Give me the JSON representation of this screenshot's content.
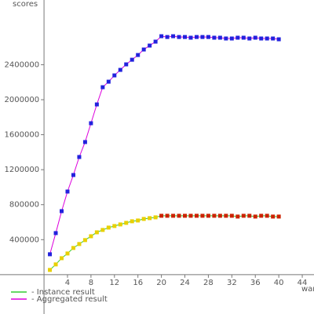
{
  "chart_data": {
    "type": "line",
    "y_label": "scores",
    "x_label": "war",
    "xlim": [
      -7.5,
      46
    ],
    "ylim": [
      -450000,
      3140000
    ],
    "xticks": [
      4,
      8,
      12,
      16,
      20,
      24,
      28,
      32,
      36,
      40,
      44
    ],
    "yticks": [
      400000,
      800000,
      1200000,
      1600000,
      2000000,
      2400000
    ],
    "x": [
      1,
      2,
      3,
      4,
      5,
      6,
      7,
      8,
      9,
      10,
      11,
      12,
      13,
      14,
      15,
      16,
      17,
      18,
      19,
      20,
      21,
      22,
      23,
      24,
      25,
      26,
      27,
      28,
      29,
      30,
      31,
      32,
      33,
      34,
      35,
      36,
      37,
      38,
      39,
      40
    ],
    "series": [
      {
        "name": "- Instance result",
        "color": "#33cc33",
        "marker_colors": [
          "#e8d000",
          "#e8d000",
          "#e8d000",
          "#e8d000",
          "#e8d000",
          "#e8d000",
          "#e8d000",
          "#e8d000",
          "#e8d000",
          "#e8d000",
          "#e8d000",
          "#e8d000",
          "#e8d000",
          "#e8d000",
          "#e8d000",
          "#e8d000",
          "#e8d000",
          "#e8d000",
          "#e8d000",
          "#cc2200",
          "#cc2200",
          "#cc2200",
          "#cc2200",
          "#cc2200",
          "#cc2200",
          "#cc2200",
          "#cc2200",
          "#cc2200",
          "#cc2200",
          "#cc2200",
          "#cc2200",
          "#cc2200",
          "#cc2200",
          "#cc2200",
          "#cc2200",
          "#cc2200",
          "#cc2200",
          "#cc2200",
          "#cc2200",
          "#cc2200"
        ],
        "values": [
          54000,
          117000,
          188000,
          242000,
          305000,
          350000,
          395000,
          439000,
          484000,
          511000,
          538000,
          556000,
          574000,
          592000,
          610000,
          619000,
          637000,
          646000,
          655000,
          673000,
          673000,
          673000,
          673000,
          673000,
          673000,
          673000,
          673000,
          673000,
          673000,
          673000,
          673000,
          673000,
          664000,
          673000,
          673000,
          664000,
          673000,
          673000,
          664000,
          664000
        ]
      },
      {
        "name": "- Aggregated result",
        "color": "#dd00dd",
        "marker_colors": [
          "#2222dd",
          "#2222dd",
          "#2222dd",
          "#2222dd",
          "#2222dd",
          "#2222dd",
          "#2222dd",
          "#2222dd",
          "#2222dd",
          "#2222dd",
          "#2222dd",
          "#2222dd",
          "#2222dd",
          "#2222dd",
          "#2222dd",
          "#2222dd",
          "#2222dd",
          "#2222dd",
          "#2222dd",
          "#2222dd",
          "#2222dd",
          "#2222dd",
          "#2222dd",
          "#2222dd",
          "#2222dd",
          "#2222dd",
          "#2222dd",
          "#2222dd",
          "#2222dd",
          "#2222dd",
          "#2222dd",
          "#2222dd",
          "#2222dd",
          "#2222dd",
          "#2222dd",
          "#2222dd",
          "#2222dd",
          "#2222dd",
          "#2222dd",
          "#2222dd"
        ],
        "values": [
          233000,
          475000,
          726000,
          950000,
          1139000,
          1345000,
          1516000,
          1731000,
          1946000,
          2143000,
          2206000,
          2278000,
          2341000,
          2404000,
          2457000,
          2511000,
          2574000,
          2619000,
          2664000,
          2726000,
          2717000,
          2726000,
          2717000,
          2717000,
          2709000,
          2717000,
          2717000,
          2717000,
          2709000,
          2709000,
          2700000,
          2700000,
          2709000,
          2709000,
          2700000,
          2709000,
          2700000,
          2700000,
          2700000,
          2691000
        ]
      }
    ]
  }
}
